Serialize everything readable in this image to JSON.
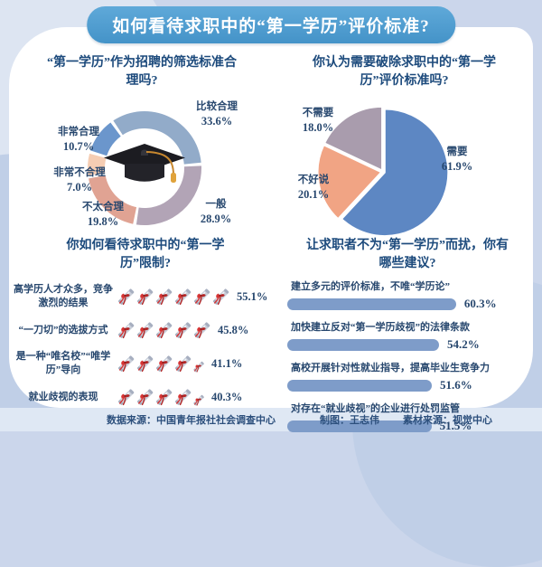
{
  "header": {
    "title": "如何看待求职中的“第一学历”评价标准?"
  },
  "footer": {
    "data_source": "数据来源：中国青年报社社会调查中心",
    "designer": "制图：王志伟",
    "material_source": "素材来源：视觉中心"
  },
  "colors": {
    "banner_blue": "#4d9fd3",
    "page_bg": "#cbd6eb",
    "text_navy": "#27476e",
    "bar_blue": "#7e9cc9",
    "bow_red": "#d63434"
  },
  "chart_data": [
    {
      "id": "rationality-donut",
      "type": "pie",
      "subtype": "donut",
      "title": "“第一学历”作为招聘的筛选标准合理吗?",
      "start_angle_deg": -35,
      "center_icon": "graduation-cap",
      "unit": "%",
      "slices": [
        {
          "label": "比较合理",
          "value": 33.6,
          "color": "#92abc9"
        },
        {
          "label": "一般",
          "value": 28.9,
          "color": "#b2a4b6"
        },
        {
          "label": "不太合理",
          "value": 19.8,
          "color": "#e0a393"
        },
        {
          "label": "非常不合理",
          "value": 7.0,
          "color": "#f5cdb3"
        },
        {
          "label": "非常合理",
          "value": 10.7,
          "color": "#6b96cc"
        }
      ]
    },
    {
      "id": "abolish-pie",
      "type": "pie",
      "title": "你认为需要破除求职中的“第一学历”评价标准吗?",
      "start_angle_deg": 0,
      "unit": "%",
      "slices": [
        {
          "label": "需要",
          "value": 61.9,
          "color": "#5d87c3"
        },
        {
          "label": "不好说",
          "value": 20.1,
          "color": "#f1a484"
        },
        {
          "label": "不需要",
          "value": 18.0,
          "color": "#a99cad"
        }
      ]
    },
    {
      "id": "opinion-pictogram",
      "type": "pictogram-bar",
      "title": "你如何看待求职中的“第一学历”限制?",
      "icon": "diploma-scroll",
      "unit": "%",
      "rows": [
        {
          "label": "高学历人才众多，竞争激烈的结果",
          "value": 55.1,
          "icons": 6
        },
        {
          "label": "“一刀切”的选拔方式",
          "value": 45.8,
          "icons": 5
        },
        {
          "label": "是一种“唯名校”“唯学历”导向",
          "value": 41.1,
          "icons": 4.5
        },
        {
          "label": "就业歧视的表现",
          "value": 40.3,
          "icons": 4.5
        }
      ]
    },
    {
      "id": "suggestion-bars",
      "type": "bar",
      "title": "让求职者不为“第一学历”而扰，你有哪些建议?",
      "unit": "%",
      "xlim": [
        0,
        65
      ],
      "rows": [
        {
          "label": "建立多元的评价标准，不唯“学历论”",
          "value": 60.3
        },
        {
          "label": "加快建立反对“第一学历歧视”的法律条款",
          "value": 54.2
        },
        {
          "label": "高校开展针对性就业指导，提高毕业生竞争力",
          "value": 51.6
        },
        {
          "label": "对存在“就业歧视”的企业进行处罚监管",
          "value": 51.5
        }
      ]
    }
  ]
}
